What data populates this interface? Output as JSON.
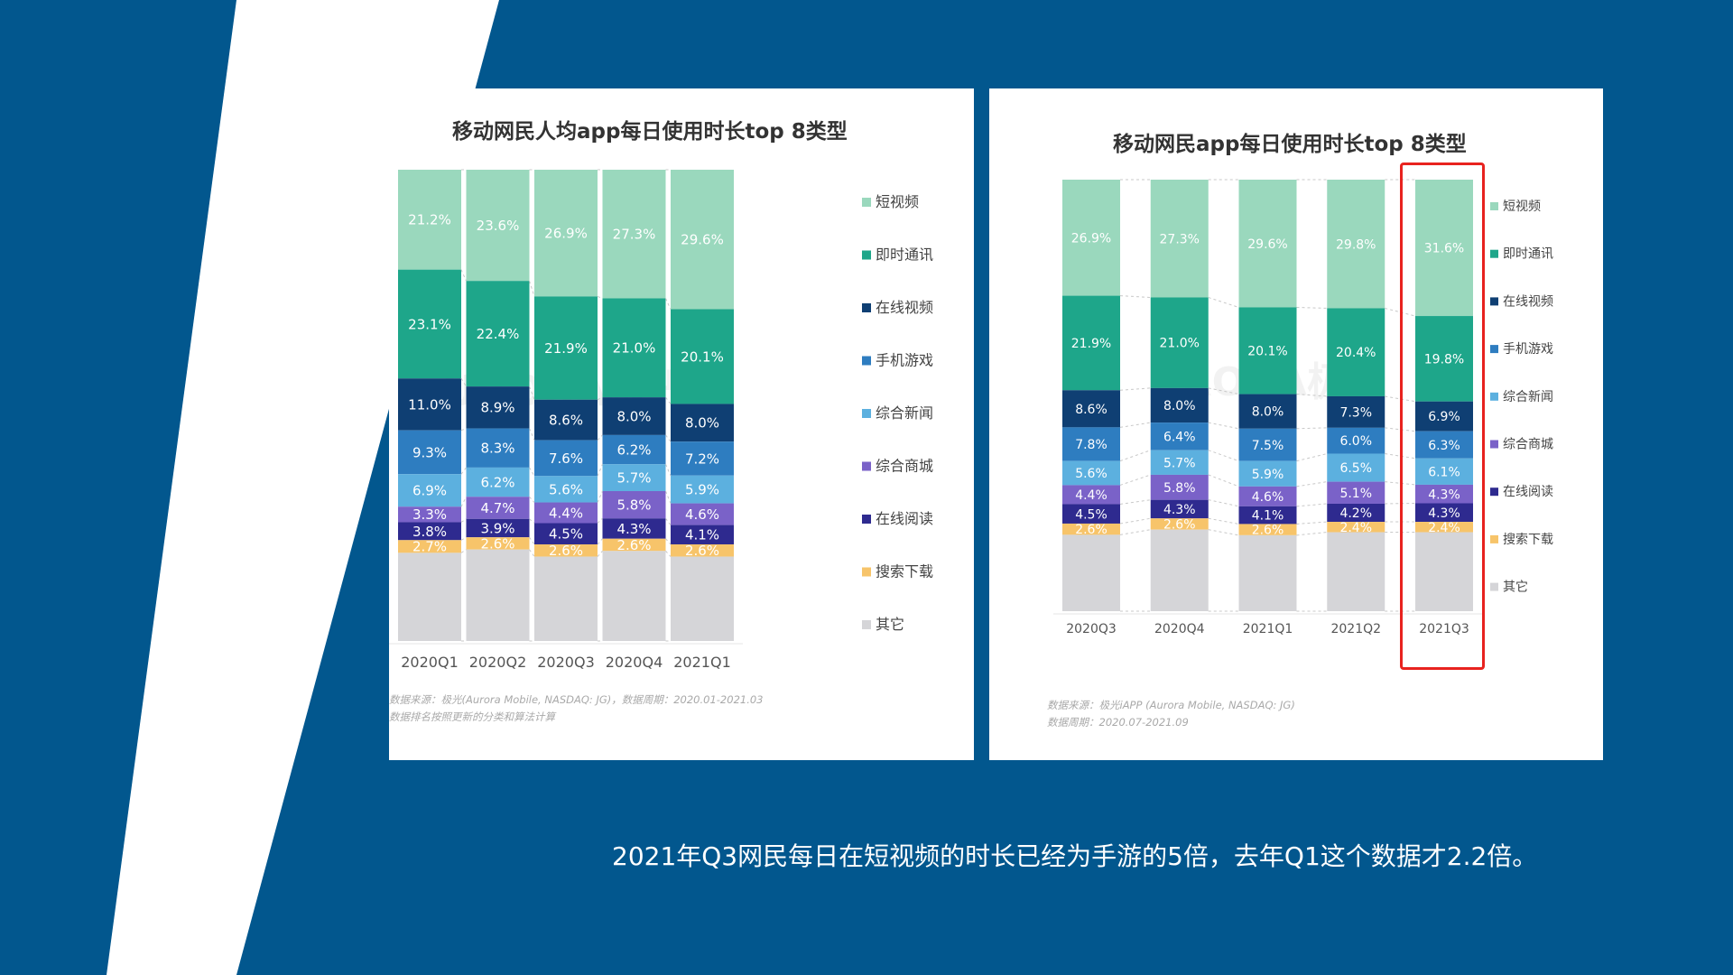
{
  "caption": "2021年Q3网民每日在短视频的时长已经为手游的5倍，去年Q1这个数据才2.2倍。",
  "categories": [
    "短视频",
    "即时通讯",
    "在线视频",
    "手机游戏",
    "综合新闻",
    "综合商城",
    "在线阅读",
    "搜索下载",
    "其它"
  ],
  "colors": {
    "background": "#02578e",
    "short_video": "#9ad8bd",
    "instant_messaging": "#1ea68a",
    "online_video": "#0f3f73",
    "mobile_games": "#2e7dc0",
    "general_news": "#5cb0df",
    "ecommerce": "#7a62c8",
    "online_reading": "#2e2a8f",
    "search_download": "#f7c46a",
    "other": "#d5d5d8",
    "highlight": "#e8231f"
  },
  "watermark": "URORA极光",
  "chart_data": [
    {
      "type": "bar",
      "stacked": true,
      "title": "移动网民人均app每日使用时长top 8类型",
      "categories": [
        "2020Q1",
        "2020Q2",
        "2020Q3",
        "2020Q4",
        "2021Q1"
      ],
      "ylim": [
        0,
        100
      ],
      "legend": "right",
      "series": [
        {
          "name": "短视频",
          "values": [
            21.2,
            23.6,
            26.9,
            27.3,
            29.6
          ]
        },
        {
          "name": "即时通讯",
          "values": [
            23.1,
            22.4,
            21.9,
            21.0,
            20.1
          ]
        },
        {
          "name": "在线视频",
          "values": [
            11.0,
            8.9,
            8.6,
            8.0,
            8.0
          ]
        },
        {
          "name": "手机游戏",
          "values": [
            9.3,
            8.3,
            7.6,
            6.2,
            7.2
          ]
        },
        {
          "name": "综合新闻",
          "values": [
            6.9,
            6.2,
            5.6,
            5.7,
            5.9
          ]
        },
        {
          "name": "综合商城",
          "values": [
            3.3,
            4.7,
            4.4,
            5.8,
            4.6
          ]
        },
        {
          "name": "在线阅读",
          "values": [
            3.8,
            3.9,
            4.5,
            4.3,
            4.1
          ]
        },
        {
          "name": "搜索下载",
          "values": [
            2.7,
            2.6,
            2.6,
            2.6,
            2.6
          ]
        },
        {
          "name": "其它",
          "values": [
            18.7,
            19.4,
            17.9,
            19.1,
            17.9
          ]
        }
      ],
      "source_lines": [
        "数据来源：极光(Aurora Mobile, NASDAQ: JG)，数据周期：2020.01-2021.03",
        "数据排名按照更新的分类和算法计算"
      ]
    },
    {
      "type": "bar",
      "stacked": true,
      "title": "移动网民app每日使用时长top 8类型",
      "categories": [
        "2020Q3",
        "2020Q4",
        "2021Q1",
        "2021Q2",
        "2021Q3"
      ],
      "ylim": [
        0,
        100
      ],
      "legend": "right",
      "highlighted_category": "2021Q3",
      "series": [
        {
          "name": "短视频",
          "values": [
            26.9,
            27.3,
            29.6,
            29.8,
            31.6
          ]
        },
        {
          "name": "即时通讯",
          "values": [
            21.9,
            21.0,
            20.1,
            20.4,
            19.8
          ]
        },
        {
          "name": "在线视频",
          "values": [
            8.6,
            8.0,
            8.0,
            7.3,
            6.9
          ]
        },
        {
          "name": "手机游戏",
          "values": [
            7.8,
            6.4,
            7.5,
            6.0,
            6.3
          ]
        },
        {
          "name": "综合新闻",
          "values": [
            5.6,
            5.7,
            5.9,
            6.5,
            6.1
          ]
        },
        {
          "name": "综合商城",
          "values": [
            4.4,
            5.8,
            4.6,
            5.1,
            4.3
          ]
        },
        {
          "name": "在线阅读",
          "values": [
            4.5,
            4.3,
            4.1,
            4.2,
            4.3
          ]
        },
        {
          "name": "搜索下载",
          "values": [
            2.6,
            2.6,
            2.6,
            2.4,
            2.4
          ]
        },
        {
          "name": "其它",
          "values": [
            17.7,
            18.9,
            17.6,
            18.3,
            18.3
          ]
        }
      ],
      "source_lines": [
        "数据来源：极光iAPP (Aurora Mobile, NASDAQ: JG)",
        "数据周期：2020.07-2021.09"
      ]
    }
  ]
}
